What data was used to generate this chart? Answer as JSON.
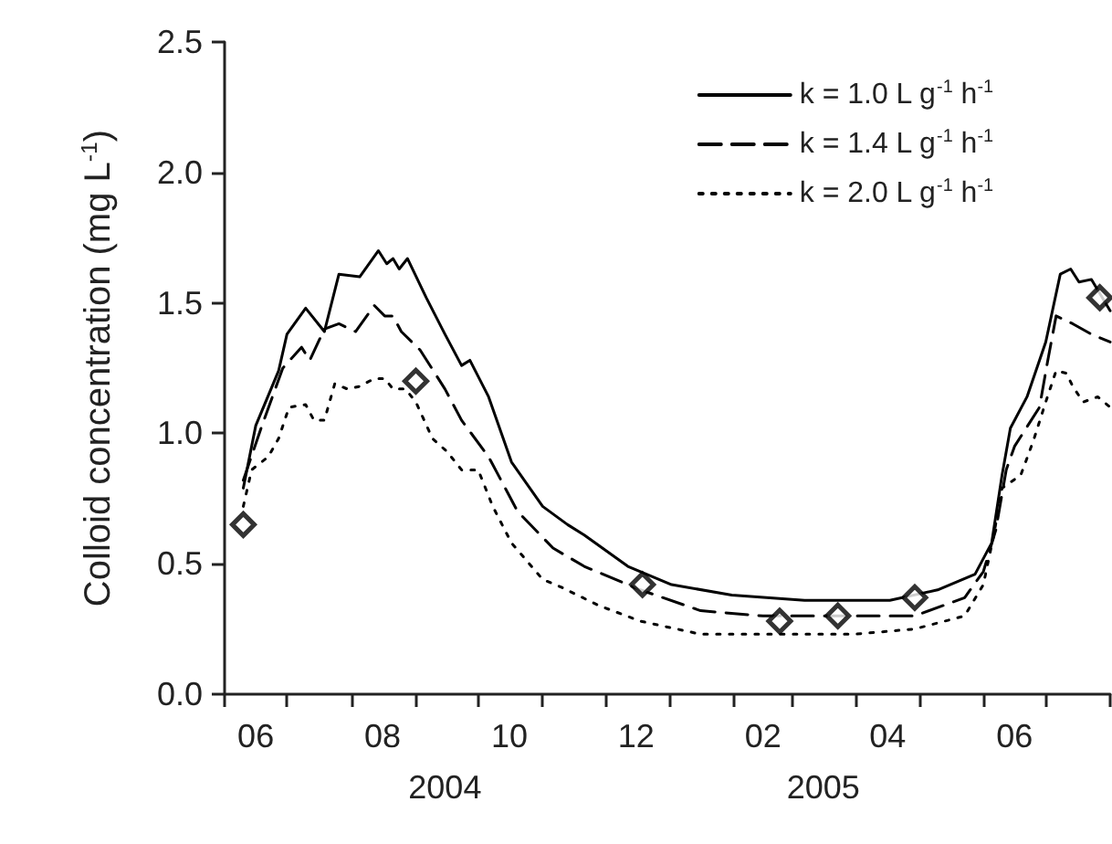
{
  "chart_data": {
    "type": "line",
    "ylabel": "Colloid concentration (mg L$^{-1}$)",
    "ylim": [
      0,
      2.5
    ],
    "yticks": [
      {
        "value": 0,
        "label": "0.0"
      },
      0.5,
      {
        "value": 1,
        "label": "1.0"
      },
      1.5,
      {
        "value": 2,
        "label": "2.0"
      },
      2.5
    ],
    "xlim": [
      "2004-06-01",
      "2005-08-01"
    ],
    "xticks": [
      {
        "value": "2004-06-01",
        "label": null
      },
      {
        "value": "2004-07-01",
        "label": null
      },
      {
        "value": "2004-08-01",
        "label": null
      },
      {
        "value": "2004-09-01",
        "label": null
      },
      {
        "value": "2004-10-01",
        "label": null
      },
      {
        "value": "2004-11-01",
        "label": null
      },
      {
        "value": "2004-12-01",
        "label": null
      },
      {
        "value": "2005-01-01",
        "label": null
      },
      {
        "value": "2005-02-01",
        "label": null
      },
      {
        "value": "2005-03-01",
        "label": null
      },
      {
        "value": "2005-04-01",
        "label": null
      },
      {
        "value": "2005-05-01",
        "label": null
      },
      {
        "value": "2005-06-01",
        "label": null
      },
      {
        "value": "2005-07-01",
        "label": null
      },
      {
        "value": "2005-08-01",
        "label": null
      },
      {
        "value": "2004-06-16",
        "label": "06"
      },
      {
        "value": "2004-08-16",
        "label": "08"
      },
      {
        "value": "2004-10-16",
        "label": "10"
      },
      {
        "value": "2004-12-16",
        "label": "12"
      },
      {
        "value": "2005-02-15",
        "label": "02"
      },
      {
        "value": "2005-04-16",
        "label": "04"
      },
      {
        "value": "2005-06-16",
        "label": "06"
      }
    ],
    "x2lim": [
      "2004-06-01",
      "2005-08-01"
    ],
    "x2ticks": [
      {
        "value": "2004-09-15",
        "label": "2004"
      },
      {
        "value": "2005-03-16",
        "label": "2005"
      }
    ],
    "grid": false,
    "legend": "top right",
    "marker": "none",
    "series": [
      {
        "name": "k = 1.0 L g$^{-1}$ h$^{-1}$",
        "color": "#000000",
        "line_style": "solid",
        "x": [
          "2004-06-10",
          "2004-06-16",
          "2004-06-27",
          "2004-07-01",
          "2004-07-10",
          "2004-07-19",
          "2004-07-26",
          "2004-08-05",
          "2004-08-14",
          "2004-08-18",
          "2004-08-21",
          "2004-08-24",
          "2004-08-28",
          "2004-09-06",
          "2004-09-15",
          "2004-09-23",
          "2004-09-27",
          "2004-10-06",
          "2004-10-17",
          "2004-11-01",
          "2004-11-13",
          "2004-11-21",
          "2004-12-12",
          "2005-01-02",
          "2005-01-31",
          "2005-03-07",
          "2005-04-17",
          "2005-05-10",
          "2005-05-28",
          "2005-06-05",
          "2005-06-10",
          "2005-06-14",
          "2005-06-22",
          "2005-07-01",
          "2005-07-08",
          "2005-07-13",
          "2005-07-17",
          "2005-07-23",
          "2005-08-01"
        ],
        "values": [
          0.79,
          1.03,
          1.24,
          1.38,
          1.48,
          1.39,
          1.61,
          1.6,
          1.7,
          1.65,
          1.67,
          1.63,
          1.67,
          1.52,
          1.38,
          1.26,
          1.28,
          1.14,
          0.89,
          0.72,
          0.65,
          0.61,
          0.49,
          0.42,
          0.38,
          0.36,
          0.36,
          0.4,
          0.46,
          0.58,
          0.84,
          1.02,
          1.14,
          1.35,
          1.61,
          1.63,
          1.58,
          1.59,
          1.47
        ]
      },
      {
        "name": "k = 1.4 L g$^{-1}$ h$^{-1}$",
        "color": "#000000",
        "line_style": "dashed",
        "x": [
          "2004-06-10",
          "2004-06-19",
          "2004-06-29",
          "2004-07-08",
          "2004-07-12",
          "2004-07-19",
          "2004-07-26",
          "2004-08-03",
          "2004-08-12",
          "2004-08-17",
          "2004-08-21",
          "2004-08-25",
          "2004-09-03",
          "2004-09-15",
          "2004-09-23",
          "2004-10-06",
          "2004-10-20",
          "2004-11-06",
          "2004-11-21",
          "2004-12-18",
          "2005-01-16",
          "2005-02-15",
          "2005-03-31",
          "2005-04-29",
          "2005-05-23",
          "2005-06-01",
          "2005-06-07",
          "2005-06-12",
          "2005-06-16",
          "2005-06-28",
          "2005-07-02",
          "2005-07-06",
          "2005-07-14",
          "2005-07-23",
          "2005-08-01"
        ],
        "values": [
          0.82,
          1.03,
          1.25,
          1.33,
          1.28,
          1.4,
          1.42,
          1.39,
          1.49,
          1.45,
          1.45,
          1.39,
          1.32,
          1.17,
          1.05,
          0.91,
          0.7,
          0.56,
          0.49,
          0.4,
          0.32,
          0.3,
          0.3,
          0.3,
          0.37,
          0.47,
          0.63,
          0.86,
          0.95,
          1.1,
          1.28,
          1.45,
          1.42,
          1.38,
          1.35
        ]
      },
      {
        "name": "k = 2.0 L g$^{-1}$ h$^{-1}$",
        "color": "#000000",
        "line_style": "dotted",
        "x": [
          "2004-06-10",
          "2004-06-14",
          "2004-06-22",
          "2004-06-27",
          "2004-07-02",
          "2004-07-10",
          "2004-07-14",
          "2004-07-19",
          "2004-07-24",
          "2004-07-30",
          "2004-08-05",
          "2004-08-12",
          "2004-08-17",
          "2004-08-21",
          "2004-08-27",
          "2004-09-01",
          "2004-09-09",
          "2004-09-16",
          "2004-09-23",
          "2004-10-01",
          "2004-10-08",
          "2004-10-17",
          "2004-11-01",
          "2004-11-10",
          "2004-11-28",
          "2004-12-18",
          "2005-01-16",
          "2005-02-15",
          "2005-03-31",
          "2005-04-29",
          "2005-05-23",
          "2005-06-01",
          "2005-06-06",
          "2005-06-10",
          "2005-06-19",
          "2005-06-25",
          "2005-07-01",
          "2005-07-06",
          "2005-07-11",
          "2005-07-14",
          "2005-07-19",
          "2005-07-26",
          "2005-08-01"
        ],
        "values": [
          0.72,
          0.86,
          0.91,
          0.98,
          1.1,
          1.11,
          1.05,
          1.05,
          1.19,
          1.17,
          1.18,
          1.21,
          1.21,
          1.17,
          1.17,
          1.12,
          0.98,
          0.93,
          0.86,
          0.86,
          0.72,
          0.58,
          0.44,
          0.41,
          0.34,
          0.28,
          0.23,
          0.23,
          0.23,
          0.25,
          0.3,
          0.42,
          0.61,
          0.79,
          0.84,
          0.97,
          1.12,
          1.24,
          1.23,
          1.18,
          1.12,
          1.14,
          1.1
        ]
      },
      {
        "type": "scatter",
        "marker": "diamond",
        "color": "#000000",
        "x": [
          "2004-06-10",
          "2004-09-01",
          "2004-12-19",
          "2005-02-23",
          "2005-03-23",
          "2005-04-29",
          "2005-07-27"
        ],
        "values": [
          0.65,
          1.2,
          0.42,
          0.28,
          0.3,
          0.37,
          1.52
        ]
      }
    ]
  }
}
